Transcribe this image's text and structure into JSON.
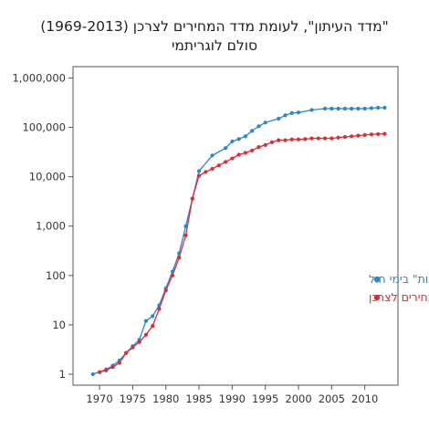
{
  "title_line1": "\"מדד העיתון\", לעומת מדד המחירים לצרכן (1969-2013)",
  "title_line2": "סולם לוגריתמי",
  "chart_data": {
    "type": "line",
    "title": "\"מדד העיתון\", לעומת מדד המחירים לצרכן (1969-2013)",
    "subtitle": "סולם לוגריתמי",
    "xlabel": "",
    "ylabel": "",
    "yscale": "log",
    "xlim": [
      1966,
      2015
    ],
    "ylim": [
      0.6,
      1700000
    ],
    "x_ticks": [
      1970,
      1975,
      1980,
      1985,
      1990,
      1995,
      2000,
      2005,
      2010
    ],
    "y_ticks": [
      1,
      10,
      100,
      1000,
      10000,
      100000,
      1000000
    ],
    "y_tick_labels": [
      "1",
      "10",
      "100",
      "1,000",
      "10,000",
      "100,000",
      "1,000,000"
    ],
    "grid": false,
    "legend_position": "bottom-right",
    "series": [
      {
        "name": "מחיר גיליון \"ידיעות אחרונות\" בימי חול",
        "color": "#2a88c8",
        "x": [
          1969,
          1971,
          1972,
          1973,
          1974,
          1975,
          1976,
          1977,
          1978,
          1979,
          1980,
          1981,
          1982,
          1983,
          1984,
          1985,
          1987,
          1989,
          1990,
          1991,
          1992,
          1993,
          1994,
          1995,
          1997,
          1998,
          1999,
          2000,
          2002,
          2004,
          2005,
          2006,
          2007,
          2008,
          2009,
          2010,
          2011,
          2012,
          2013
        ],
        "values": [
          1,
          1.25,
          1.5,
          1.9,
          2.7,
          3.7,
          5,
          12,
          15,
          25,
          55,
          120,
          280,
          1000,
          3600,
          13000,
          27000,
          38000,
          52000,
          58000,
          66000,
          85000,
          105000,
          125000,
          150000,
          175000,
          195000,
          200000,
          225000,
          240000,
          240000,
          240000,
          240000,
          240000,
          240000,
          240000,
          245000,
          250000,
          250000
        ]
      },
      {
        "name": "מדד המחירים לצרכן",
        "color": "#e02a35",
        "x": [
          1970,
          1971,
          1972,
          1973,
          1974,
          1975,
          1976,
          1977,
          1978,
          1979,
          1980,
          1981,
          1982,
          1983,
          1984,
          1985,
          1986,
          1987,
          1988,
          1989,
          1990,
          1991,
          1992,
          1993,
          1994,
          1995,
          1996,
          1997,
          1998,
          1999,
          2000,
          2001,
          2002,
          2003,
          2004,
          2005,
          2006,
          2007,
          2008,
          2009,
          2010,
          2011,
          2012,
          2013
        ],
        "values": [
          1.1,
          1.2,
          1.4,
          1.7,
          2.7,
          3.5,
          4.5,
          6.3,
          9.5,
          21,
          50,
          100,
          230,
          650,
          3600,
          10500,
          12500,
          14500,
          17000,
          20000,
          23500,
          28000,
          30500,
          34000,
          40000,
          44000,
          50000,
          55000,
          55000,
          57000,
          57000,
          58000,
          60000,
          60000,
          60000,
          60000,
          62000,
          64000,
          66000,
          68000,
          70000,
          72000,
          73000,
          74000
        ]
      }
    ]
  }
}
